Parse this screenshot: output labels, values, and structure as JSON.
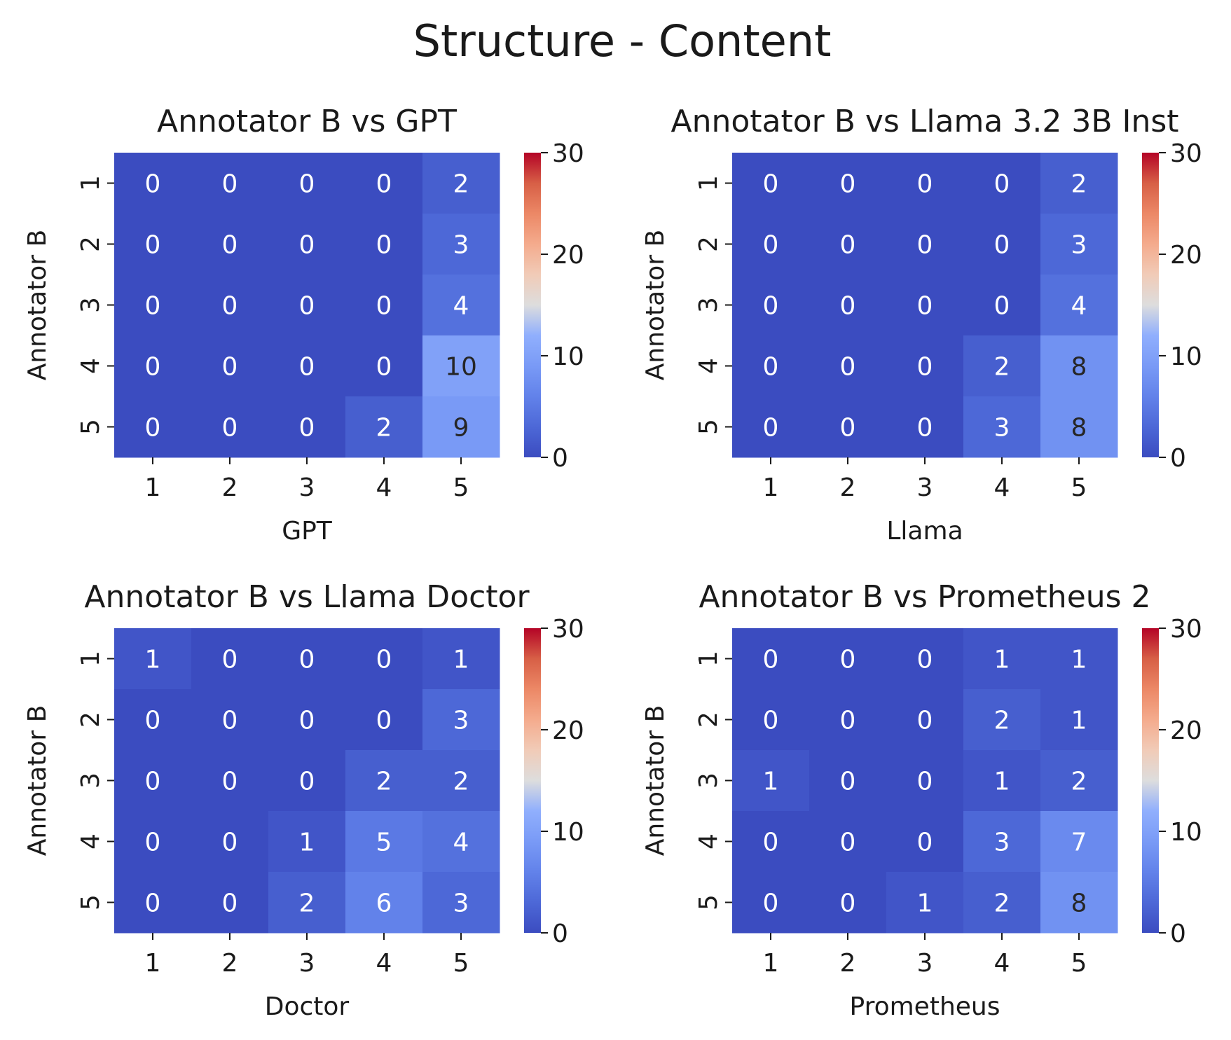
{
  "figure": {
    "title": "Structure - Content"
  },
  "colors": {
    "colormap": "coolwarm",
    "light_text": "#ffffff",
    "dark_text": "#262626",
    "axis": "#1a1a1a"
  },
  "chart_data": [
    {
      "type": "heatmap",
      "title": "Annotator B vs GPT",
      "xlabel": "GPT",
      "ylabel": "Annotator B",
      "x_categories": [
        "1",
        "2",
        "3",
        "4",
        "5"
      ],
      "y_categories": [
        "1",
        "2",
        "3",
        "4",
        "5"
      ],
      "values": [
        [
          0,
          0,
          0,
          0,
          2
        ],
        [
          0,
          0,
          0,
          0,
          3
        ],
        [
          0,
          0,
          0,
          0,
          4
        ],
        [
          0,
          0,
          0,
          0,
          10
        ],
        [
          0,
          0,
          0,
          2,
          9
        ]
      ],
      "colorbar": {
        "range": [
          0,
          30
        ],
        "ticks": [
          0,
          10,
          20,
          30
        ]
      }
    },
    {
      "type": "heatmap",
      "title": "Annotator B vs Llama 3.2 3B Inst",
      "xlabel": "Llama",
      "ylabel": "Annotator B",
      "x_categories": [
        "1",
        "2",
        "3",
        "4",
        "5"
      ],
      "y_categories": [
        "1",
        "2",
        "3",
        "4",
        "5"
      ],
      "values": [
        [
          0,
          0,
          0,
          0,
          2
        ],
        [
          0,
          0,
          0,
          0,
          3
        ],
        [
          0,
          0,
          0,
          0,
          4
        ],
        [
          0,
          0,
          0,
          2,
          8
        ],
        [
          0,
          0,
          0,
          3,
          8
        ]
      ],
      "colorbar": {
        "range": [
          0,
          30
        ],
        "ticks": [
          0,
          10,
          20,
          30
        ]
      }
    },
    {
      "type": "heatmap",
      "title": "Annotator B vs Llama Doctor",
      "xlabel": "Doctor",
      "ylabel": "Annotator B",
      "x_categories": [
        "1",
        "2",
        "3",
        "4",
        "5"
      ],
      "y_categories": [
        "1",
        "2",
        "3",
        "4",
        "5"
      ],
      "values": [
        [
          1,
          0,
          0,
          0,
          1
        ],
        [
          0,
          0,
          0,
          0,
          3
        ],
        [
          0,
          0,
          0,
          2,
          2
        ],
        [
          0,
          0,
          1,
          5,
          4
        ],
        [
          0,
          0,
          2,
          6,
          3
        ]
      ],
      "colorbar": {
        "range": [
          0,
          30
        ],
        "ticks": [
          0,
          10,
          20,
          30
        ]
      }
    },
    {
      "type": "heatmap",
      "title": "Annotator B vs Prometheus 2",
      "xlabel": "Prometheus",
      "ylabel": "Annotator B",
      "x_categories": [
        "1",
        "2",
        "3",
        "4",
        "5"
      ],
      "y_categories": [
        "1",
        "2",
        "3",
        "4",
        "5"
      ],
      "values": [
        [
          0,
          0,
          0,
          1,
          1
        ],
        [
          0,
          0,
          0,
          2,
          1
        ],
        [
          1,
          0,
          0,
          1,
          2
        ],
        [
          0,
          0,
          0,
          3,
          7
        ],
        [
          0,
          0,
          1,
          2,
          8
        ]
      ],
      "colorbar": {
        "range": [
          0,
          30
        ],
        "ticks": [
          0,
          10,
          20,
          30
        ]
      }
    }
  ]
}
